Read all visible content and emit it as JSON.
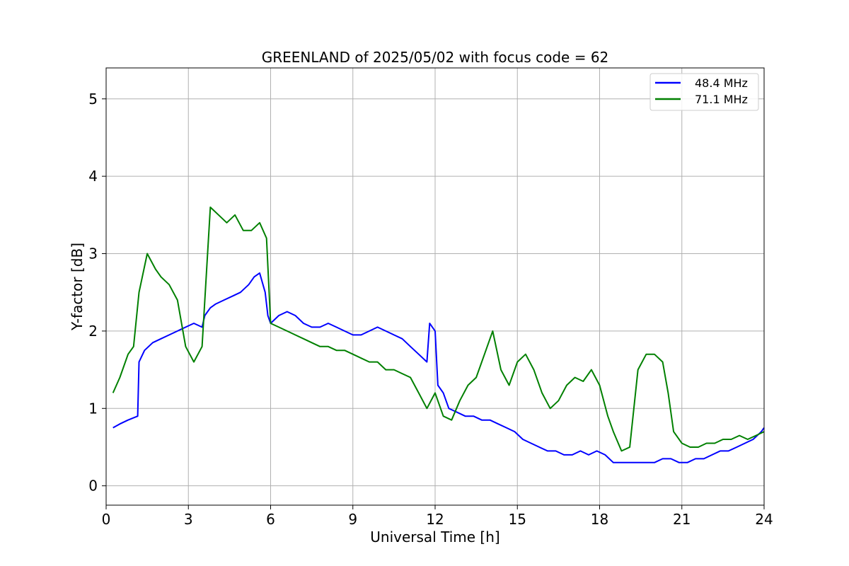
{
  "chart_data": {
    "type": "line",
    "title": "GREENLAND of 2025/05/02 with focus code = 62",
    "xlabel": "Universal Time [h]",
    "ylabel": "Y-factor [dB]",
    "xlim": [
      0,
      24
    ],
    "ylim": [
      -0.25,
      5.4
    ],
    "xticks": [
      0,
      3,
      6,
      9,
      12,
      15,
      18,
      21,
      24
    ],
    "yticks": [
      0,
      1,
      2,
      3,
      4,
      5
    ],
    "grid": true,
    "legend_position": "top-right",
    "series": [
      {
        "name": "48.4 MHz",
        "color": "#0000ff",
        "x": [
          0.25,
          0.5,
          0.8,
          1.15,
          1.2,
          1.4,
          1.7,
          2.0,
          2.3,
          2.6,
          2.9,
          3.2,
          3.5,
          3.6,
          3.8,
          4.0,
          4.3,
          4.6,
          4.9,
          5.2,
          5.4,
          5.6,
          5.8,
          5.9,
          6.0,
          6.3,
          6.6,
          6.9,
          7.2,
          7.5,
          7.8,
          8.1,
          8.4,
          8.7,
          9.0,
          9.3,
          9.6,
          9.9,
          10.2,
          10.5,
          10.8,
          11.1,
          11.4,
          11.7,
          11.8,
          12.0,
          12.1,
          12.3,
          12.5,
          12.8,
          13.1,
          13.4,
          13.7,
          14.0,
          14.3,
          14.6,
          14.9,
          15.2,
          15.5,
          15.8,
          16.1,
          16.4,
          16.7,
          17.0,
          17.3,
          17.6,
          17.9,
          18.2,
          18.5,
          18.8,
          19.1,
          19.4,
          19.7,
          20.0,
          20.3,
          20.6,
          20.9,
          21.2,
          21.5,
          21.8,
          22.1,
          22.4,
          22.7,
          23.0,
          23.3,
          23.6,
          23.9,
          24.0
        ],
        "values": [
          0.75,
          0.8,
          0.85,
          0.9,
          1.6,
          1.75,
          1.85,
          1.9,
          1.95,
          2.0,
          2.05,
          2.1,
          2.05,
          2.2,
          2.3,
          2.35,
          2.4,
          2.45,
          2.5,
          2.6,
          2.7,
          2.75,
          2.5,
          2.2,
          2.1,
          2.2,
          2.25,
          2.2,
          2.1,
          2.05,
          2.05,
          2.1,
          2.05,
          2.0,
          1.95,
          1.95,
          2.0,
          2.05,
          2.0,
          1.95,
          1.9,
          1.8,
          1.7,
          1.6,
          2.1,
          2.0,
          1.3,
          1.2,
          1.0,
          0.95,
          0.9,
          0.9,
          0.85,
          0.85,
          0.8,
          0.75,
          0.7,
          0.6,
          0.55,
          0.5,
          0.45,
          0.45,
          0.4,
          0.4,
          0.45,
          0.4,
          0.45,
          0.4,
          0.3,
          0.3,
          0.3,
          0.3,
          0.3,
          0.3,
          0.35,
          0.35,
          0.3,
          0.3,
          0.35,
          0.35,
          0.4,
          0.45,
          0.45,
          0.5,
          0.55,
          0.6,
          0.7,
          0.75
        ]
      },
      {
        "name": "71.1 MHz",
        "color": "#008000",
        "x": [
          0.25,
          0.5,
          0.8,
          1.0,
          1.2,
          1.5,
          1.8,
          2.0,
          2.3,
          2.6,
          2.9,
          3.2,
          3.5,
          3.8,
          4.1,
          4.4,
          4.7,
          5.0,
          5.3,
          5.6,
          5.85,
          6.0,
          6.3,
          6.6,
          6.9,
          7.2,
          7.5,
          7.8,
          8.1,
          8.4,
          8.7,
          9.0,
          9.3,
          9.6,
          9.9,
          10.2,
          10.5,
          10.8,
          11.1,
          11.4,
          11.7,
          12.0,
          12.3,
          12.6,
          12.9,
          13.2,
          13.5,
          13.8,
          14.1,
          14.4,
          14.7,
          15.0,
          15.3,
          15.6,
          15.9,
          16.2,
          16.5,
          16.8,
          17.1,
          17.4,
          17.7,
          18.0,
          18.3,
          18.5,
          18.8,
          19.1,
          19.4,
          19.7,
          20.0,
          20.3,
          20.5,
          20.7,
          21.0,
          21.3,
          21.6,
          21.9,
          22.2,
          22.5,
          22.8,
          23.1,
          23.4,
          23.7,
          24.0
        ],
        "values": [
          1.2,
          1.4,
          1.7,
          1.8,
          2.5,
          3.0,
          2.8,
          2.7,
          2.6,
          2.4,
          1.8,
          1.6,
          1.8,
          3.6,
          3.5,
          3.4,
          3.5,
          3.3,
          3.3,
          3.4,
          3.2,
          2.1,
          2.05,
          2.0,
          1.95,
          1.9,
          1.85,
          1.8,
          1.8,
          1.75,
          1.75,
          1.7,
          1.65,
          1.6,
          1.6,
          1.5,
          1.5,
          1.45,
          1.4,
          1.2,
          1.0,
          1.2,
          0.9,
          0.85,
          1.1,
          1.3,
          1.4,
          1.7,
          2.0,
          1.5,
          1.3,
          1.6,
          1.7,
          1.5,
          1.2,
          1.0,
          1.1,
          1.3,
          1.4,
          1.35,
          1.5,
          1.3,
          0.9,
          0.7,
          0.45,
          0.5,
          1.5,
          1.7,
          1.7,
          1.6,
          1.2,
          0.7,
          0.55,
          0.5,
          0.5,
          0.55,
          0.55,
          0.6,
          0.6,
          0.65,
          0.6,
          0.65,
          0.7
        ]
      }
    ]
  }
}
